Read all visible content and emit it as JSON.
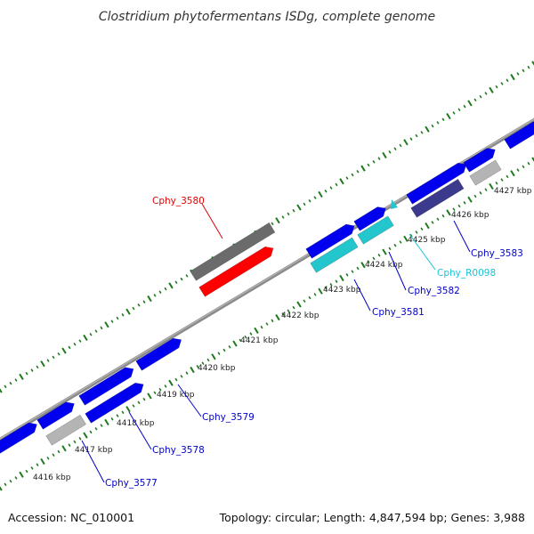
{
  "title": "Clostridium phytofermentans ISDg, complete genome",
  "footer": {
    "accession": "Accession: NC_010001",
    "topology": "Topology: circular; Length: 4,847,594 bp; Genes: 3,988"
  },
  "colors": {
    "backbone": "#8a8a8a",
    "tick": "#1d7a1d",
    "cds_blue": "#0000ee",
    "cds_gray": "#6b6b6b",
    "cds_lightgray": "#b4b4b4",
    "cds_red": "#ff0000",
    "cds_cyan": "#22c6cc",
    "cds_slate": "#3c3a8c",
    "trna_cyan": "#22c6cc"
  },
  "kbp_labels": [
    "4416 kbp",
    "4417 kbp",
    "4418 kbp",
    "4419 kbp",
    "4420 kbp",
    "4421 kbp",
    "4422 kbp",
    "4423 kbp",
    "4424 kbp",
    "4425 kbp",
    "4426 kbp",
    "4427 kbp"
  ],
  "gene_labels": [
    {
      "text": "Cphy_3580",
      "color": "#e00000"
    },
    {
      "text": "Cphy_3583",
      "color": "#0000cc"
    },
    {
      "text": "Cphy_R0098",
      "color": "#18c4d8"
    },
    {
      "text": "Cphy_3582",
      "color": "#0000cc"
    },
    {
      "text": "Cphy_3581",
      "color": "#0000cc"
    },
    {
      "text": "Cphy_3579",
      "color": "#0000cc"
    },
    {
      "text": "Cphy_3578",
      "color": "#0000cc"
    },
    {
      "text": "Cphy_3577",
      "color": "#0000cc"
    }
  ]
}
